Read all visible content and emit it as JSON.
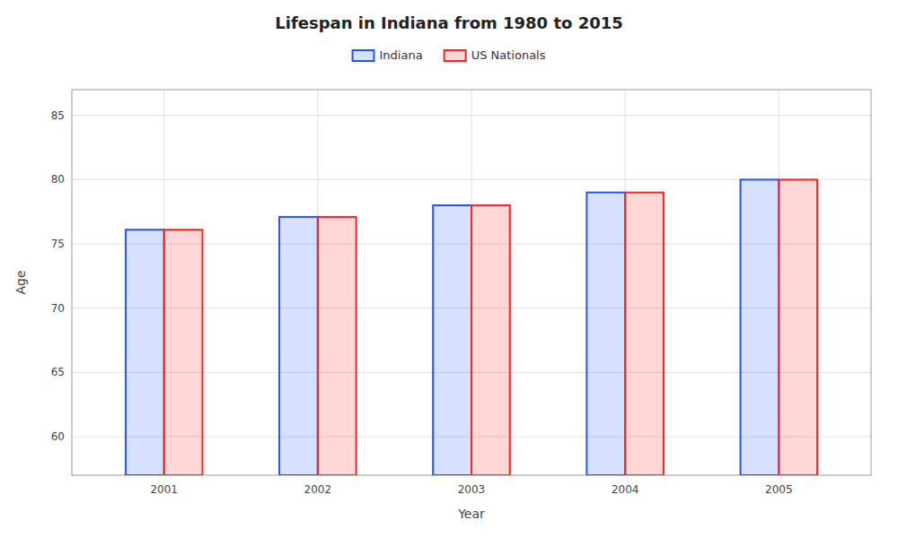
{
  "chart_data": {
    "type": "bar",
    "title": "Lifespan in Indiana from 1980 to 2015",
    "x_label": "Year",
    "y_label": "Age",
    "x": [
      2001,
      2002,
      2003,
      2004,
      2005
    ],
    "series": [
      {
        "name": "Indiana",
        "color": "#2255ff",
        "values": [
          76.1,
          77.1,
          78.0,
          79.0,
          80.0
        ]
      },
      {
        "name": "US Nationals",
        "color": "#ff2222",
        "values": [
          76.1,
          77.1,
          78.0,
          79.0,
          80.0
        ]
      }
    ],
    "xlim": [
      2000.4,
      2005.6
    ],
    "xticks": [
      2001,
      2002,
      2003,
      2004,
      2005
    ],
    "ylim": [
      57,
      87
    ],
    "yticks": [
      60,
      65,
      70,
      75,
      80,
      85
    ],
    "grid": true,
    "legend": "top"
  }
}
